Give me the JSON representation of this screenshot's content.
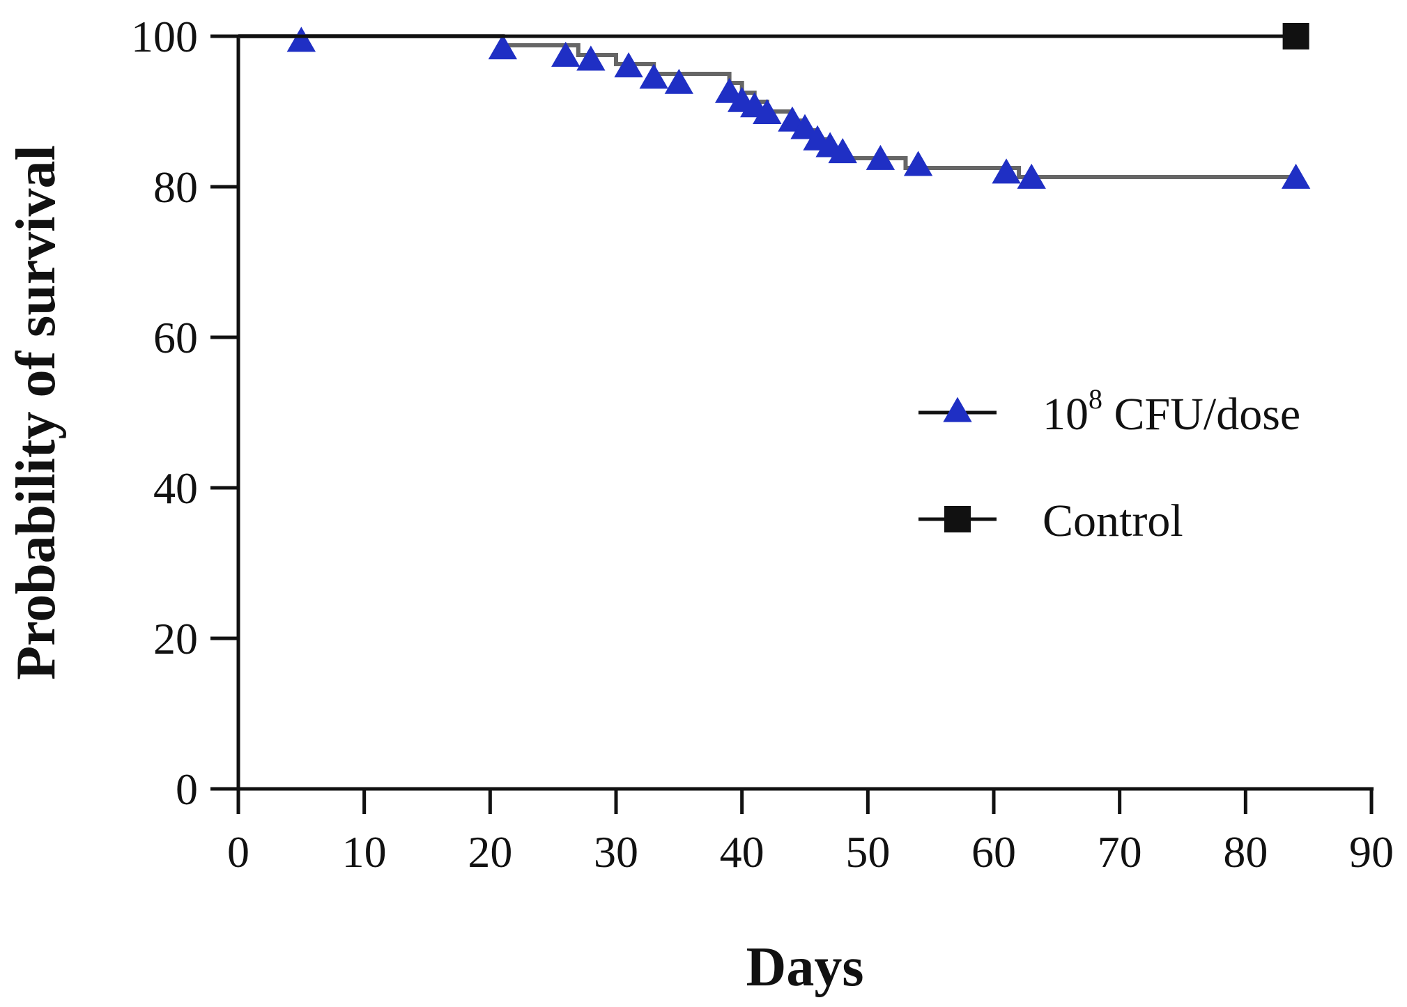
{
  "chart_data": {
    "type": "line",
    "subtype": "kaplan-meier-survival",
    "title": "",
    "xlabel": "Days",
    "ylabel": "Probability of survival",
    "xlim": [
      0,
      90
    ],
    "ylim": [
      0,
      100
    ],
    "xticks": [
      0,
      10,
      20,
      30,
      40,
      50,
      60,
      70,
      80,
      90
    ],
    "yticks": [
      0,
      20,
      40,
      60,
      80,
      100
    ],
    "grid": false,
    "legend_position": "center-right",
    "series": [
      {
        "name": "10^8 CFU/dose",
        "legend_base": "10",
        "legend_sup": "8",
        "legend_rest": " CFU/dose",
        "color": "#1f2fc4",
        "line_color": "#666666",
        "marker": "triangle",
        "step_points": [
          [
            0,
            100
          ],
          [
            21,
            100
          ],
          [
            21,
            98.8
          ],
          [
            27,
            98.8
          ],
          [
            27,
            97.5
          ],
          [
            30,
            97.5
          ],
          [
            30,
            96.3
          ],
          [
            33,
            96.3
          ],
          [
            33,
            95.0
          ],
          [
            39,
            95.0
          ],
          [
            39,
            93.8
          ],
          [
            40,
            93.8
          ],
          [
            40,
            92.5
          ],
          [
            41,
            92.5
          ],
          [
            41,
            91.3
          ],
          [
            42,
            91.3
          ],
          [
            42,
            90.0
          ],
          [
            44,
            90.0
          ],
          [
            44,
            88.8
          ],
          [
            45,
            88.8
          ],
          [
            45,
            87.5
          ],
          [
            46,
            87.5
          ],
          [
            46,
            86.3
          ],
          [
            47,
            86.3
          ],
          [
            47,
            85.0
          ],
          [
            48,
            85.0
          ],
          [
            48,
            83.8
          ],
          [
            53,
            83.8
          ],
          [
            53,
            82.5
          ],
          [
            62,
            82.5
          ],
          [
            62,
            81.3
          ],
          [
            84,
            81.3
          ]
        ],
        "censor_marks": [
          [
            5,
            99.2
          ],
          [
            21,
            98.2
          ],
          [
            26,
            97.2
          ],
          [
            28,
            96.7
          ],
          [
            31,
            95.8
          ],
          [
            33,
            94.3
          ],
          [
            35,
            93.6
          ],
          [
            39,
            92.4
          ],
          [
            40,
            91.2
          ],
          [
            41,
            90.5
          ],
          [
            42,
            89.6
          ],
          [
            44,
            88.6
          ],
          [
            45,
            87.6
          ],
          [
            46,
            86.1
          ],
          [
            47,
            85.2
          ],
          [
            48,
            84.4
          ],
          [
            51,
            83.5
          ],
          [
            54,
            82.7
          ],
          [
            61,
            81.7
          ],
          [
            63,
            81.0
          ],
          [
            84,
            81.0
          ]
        ]
      },
      {
        "name": "Control",
        "legend_base": "Control",
        "color": "#111111",
        "line_color": "#111111",
        "marker": "square",
        "step_points": [
          [
            0,
            100
          ],
          [
            84,
            100
          ]
        ],
        "censor_marks": [
          [
            84,
            100
          ]
        ]
      }
    ]
  }
}
